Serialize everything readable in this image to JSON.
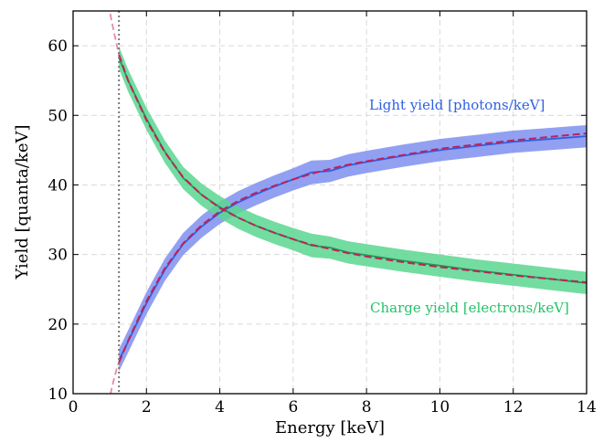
{
  "chart_data": {
    "type": "line",
    "xlabel": "Energy [keV]",
    "ylabel": "Yield [quanta/keV]",
    "xlim": [
      0,
      14
    ],
    "ylim": [
      10,
      65
    ],
    "xticks": [
      0,
      2,
      4,
      6,
      8,
      10,
      12,
      14
    ],
    "yticks": [
      10,
      20,
      30,
      40,
      50,
      60
    ],
    "grid": true,
    "threshold_x": 1.25,
    "annotations": [
      {
        "text": "Light yield [photons/keV]",
        "color": "#3060e0"
      },
      {
        "text": "Charge yield [electrons/keV]",
        "color": "#22c46a"
      }
    ],
    "series": [
      {
        "color": "#2f5fe0",
        "band_color": "#7f8ff0",
        "x": [
          1.25,
          1.5,
          2,
          2.5,
          3,
          3.5,
          4,
          4.5,
          5,
          5.5,
          6,
          6.5,
          7,
          7.5,
          8,
          9,
          10,
          11,
          12,
          13,
          14
        ],
        "y": [
          14.8,
          17.5,
          23.0,
          27.8,
          31.5,
          34.0,
          36.0,
          37.5,
          38.7,
          39.8,
          40.8,
          41.8,
          42.0,
          42.8,
          43.3,
          44.2,
          45.0,
          45.6,
          46.2,
          46.6,
          47.0
        ],
        "band": [
          1.6,
          1.6,
          1.6,
          1.6,
          1.6,
          1.6,
          1.6,
          1.6,
          1.6,
          1.6,
          1.6,
          1.7,
          1.6,
          1.6,
          1.6,
          1.6,
          1.6,
          1.6,
          1.6,
          1.6,
          1.6
        ]
      },
      {
        "color": "#1f9a55",
        "band_color": "#5ad68f",
        "x": [
          1.25,
          1.5,
          2,
          2.5,
          3,
          3.5,
          4,
          4.5,
          5,
          5.5,
          6,
          6.5,
          7,
          7.5,
          8,
          9,
          10,
          11,
          12,
          13,
          14
        ],
        "y": [
          58.3,
          55.0,
          49.5,
          44.8,
          41.0,
          38.6,
          36.8,
          35.3,
          34.1,
          33.1,
          32.2,
          31.3,
          31.0,
          30.3,
          29.9,
          29.1,
          28.4,
          27.7,
          27.1,
          26.5,
          25.9
        ],
        "band": [
          1.6,
          1.6,
          1.6,
          1.6,
          1.6,
          1.6,
          1.6,
          1.6,
          1.6,
          1.6,
          1.6,
          1.7,
          1.6,
          1.6,
          1.6,
          1.6,
          1.6,
          1.6,
          1.6,
          1.6,
          1.6
        ]
      }
    ],
    "fits": [
      {
        "color": "#c0205a",
        "x": [
          1.25,
          1.5,
          2,
          2.5,
          3,
          3.5,
          4,
          4.5,
          5,
          5.5,
          6,
          6.5,
          7,
          7.5,
          8,
          9,
          10,
          11,
          12,
          13,
          14
        ],
        "y": [
          14.5,
          17.6,
          23.3,
          28.0,
          31.6,
          34.2,
          36.2,
          37.7,
          38.9,
          39.9,
          40.8,
          41.6,
          42.3,
          42.9,
          43.4,
          44.3,
          45.2,
          45.8,
          46.4,
          46.9,
          47.4
        ]
      },
      {
        "color": "#c0205a",
        "x": [
          1.25,
          1.5,
          2,
          2.5,
          3,
          3.5,
          4,
          4.5,
          5,
          5.5,
          6,
          6.5,
          7,
          7.5,
          8,
          9,
          10,
          11,
          12,
          13,
          14
        ],
        "y": [
          58.7,
          55.0,
          49.3,
          44.7,
          41.1,
          38.6,
          36.7,
          35.3,
          34.1,
          33.1,
          32.2,
          31.4,
          30.8,
          30.2,
          29.7,
          28.9,
          28.2,
          27.6,
          27.0,
          26.5,
          26.0
        ]
      }
    ],
    "extrapolation": {
      "color": "#e78aa3",
      "x": [
        0.96,
        1.0,
        1.1,
        1.2,
        1.25
      ],
      "y_low": [
        8.5,
        9.5,
        11.8,
        13.8,
        14.5
      ],
      "y_high": [
        66.0,
        64.9,
        62.3,
        59.9,
        58.7
      ]
    }
  }
}
